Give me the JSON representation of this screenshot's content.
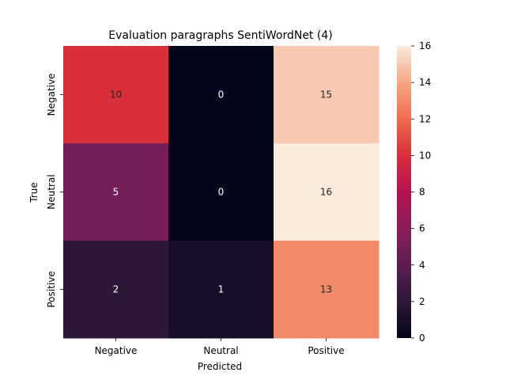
{
  "chart_data": {
    "type": "heatmap",
    "title": "Evaluation paragraphs SentiWordNet (4)",
    "xlabel": "Predicted",
    "ylabel": "True",
    "x_categories": [
      "Negative",
      "Neutral",
      "Positive"
    ],
    "y_categories": [
      "Negative",
      "Neutral",
      "Positive"
    ],
    "values": [
      [
        10,
        0,
        15
      ],
      [
        5,
        0,
        16
      ],
      [
        2,
        1,
        13
      ]
    ],
    "colorbar": {
      "range": [
        0,
        16
      ],
      "ticks": [
        "0",
        "2",
        "4",
        "6",
        "8",
        "10",
        "12",
        "14",
        "16"
      ],
      "colormap": "rocket"
    },
    "colors": {
      "annotation_light": "#ffffff",
      "annotation_dark": "#262626"
    }
  }
}
